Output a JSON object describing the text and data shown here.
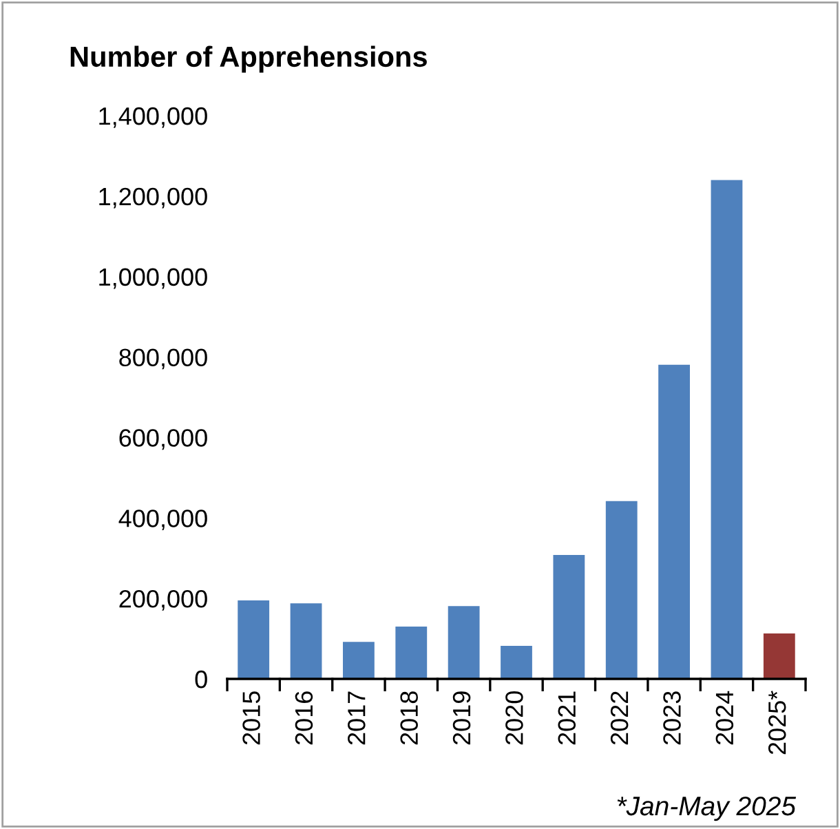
{
  "chart_data": {
    "type": "bar",
    "title": "Number of Apprehensions",
    "categories": [
      "2015",
      "2016",
      "2017",
      "2018",
      "2019",
      "2020",
      "2021",
      "2022",
      "2023",
      "2024",
      "2025*"
    ],
    "values": [
      195000,
      188000,
      92000,
      130000,
      181000,
      82000,
      308000,
      442000,
      781000,
      1240000,
      113000
    ],
    "colors": [
      "#4f81bd",
      "#4f81bd",
      "#4f81bd",
      "#4f81bd",
      "#4f81bd",
      "#4f81bd",
      "#4f81bd",
      "#4f81bd",
      "#4f81bd",
      "#4f81bd",
      "#953735"
    ],
    "ylim": [
      0,
      1400000
    ],
    "yticks": [
      {
        "value": 0,
        "label": "0"
      },
      {
        "value": 200000,
        "label": "200,000"
      },
      {
        "value": 400000,
        "label": "400,000"
      },
      {
        "value": 600000,
        "label": "600,000"
      },
      {
        "value": 800000,
        "label": "800,000"
      },
      {
        "value": 1000000,
        "label": "1,000,000"
      },
      {
        "value": 1200000,
        "label": "1,200,000"
      },
      {
        "value": 1400000,
        "label": "1,400,000"
      }
    ],
    "grid": false,
    "annotations": [
      "*Jan-May 2025"
    ]
  }
}
